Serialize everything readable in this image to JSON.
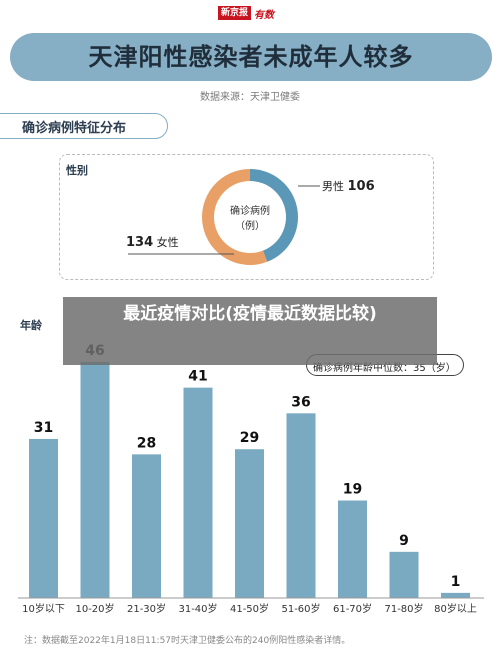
{
  "header": {
    "brand": "新京报",
    "brand_suffix": "有数",
    "title": "天津阳性感染者未成年人较多",
    "source": "数据来源：天津卫健委"
  },
  "section": {
    "title": "确诊病例特征分布"
  },
  "gender": {
    "label": "性别",
    "center_label_line1": "确诊病例",
    "center_label_line2": "（例）",
    "male_name": "男性",
    "male_value": "106",
    "female_name": "女性",
    "female_value": "134"
  },
  "age": {
    "label": "年龄",
    "median_text": "确诊病例年龄中位数：35（岁）"
  },
  "watermark": {
    "text": "最近疫情对比(疫情最近数据比较)"
  },
  "footnote": "注：数据截至2022年1月18日11:57时天津卫健委公布的240例阳性感染者详情。",
  "colors": {
    "bar": "#7aaac2",
    "male": "#5b97b6",
    "female": "#e8a066",
    "banner": "#86aec4"
  },
  "chart_data": [
    {
      "type": "pie",
      "categories": [
        "男性",
        "女性"
      ],
      "values": [
        106,
        134
      ]
    },
    {
      "type": "bar",
      "categories": [
        "10岁以下",
        "10-20岁",
        "21-30岁",
        "31-40岁",
        "41-50岁",
        "51-60岁",
        "61-70岁",
        "71-80岁",
        "80岁以上"
      ],
      "values": [
        31,
        46,
        28,
        41,
        29,
        36,
        19,
        9,
        1
      ],
      "ylim": [
        0,
        46
      ],
      "grid": false
    }
  ]
}
